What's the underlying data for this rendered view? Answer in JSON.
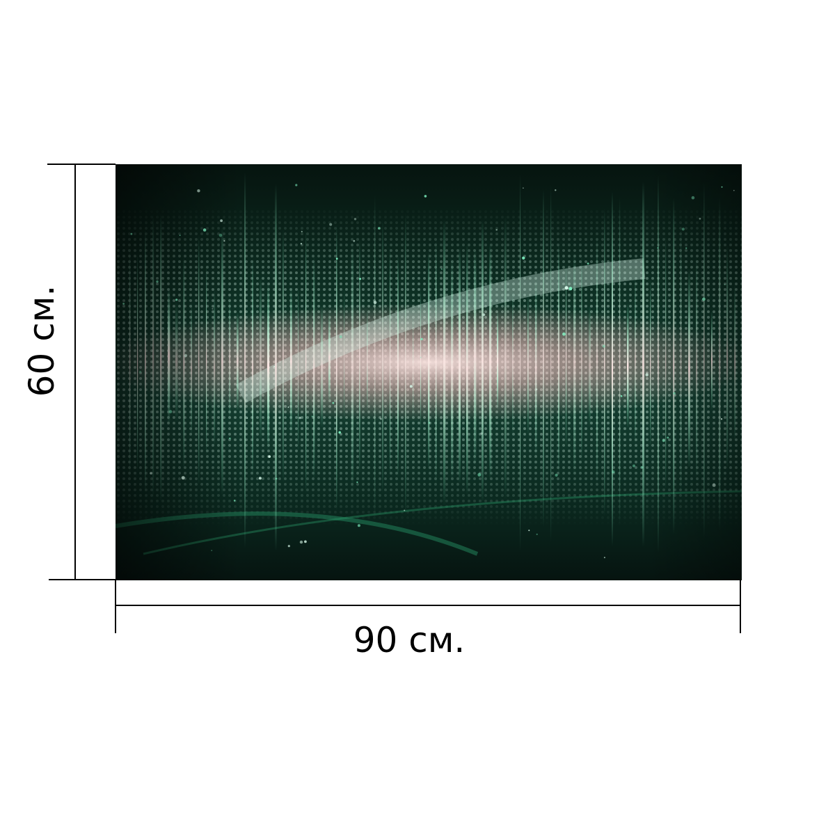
{
  "product": {
    "image_subject": "green-sound-wave-equalizer-art",
    "palette": {
      "background": "#081a14",
      "deep_green": "#0d3b2c",
      "accent_green": "#3ddc97",
      "pink_glow": "#f6c9c9",
      "dot": "#cdeee0"
    }
  },
  "dimensions": {
    "width_label": "90 см.",
    "height_label": "60 см."
  }
}
